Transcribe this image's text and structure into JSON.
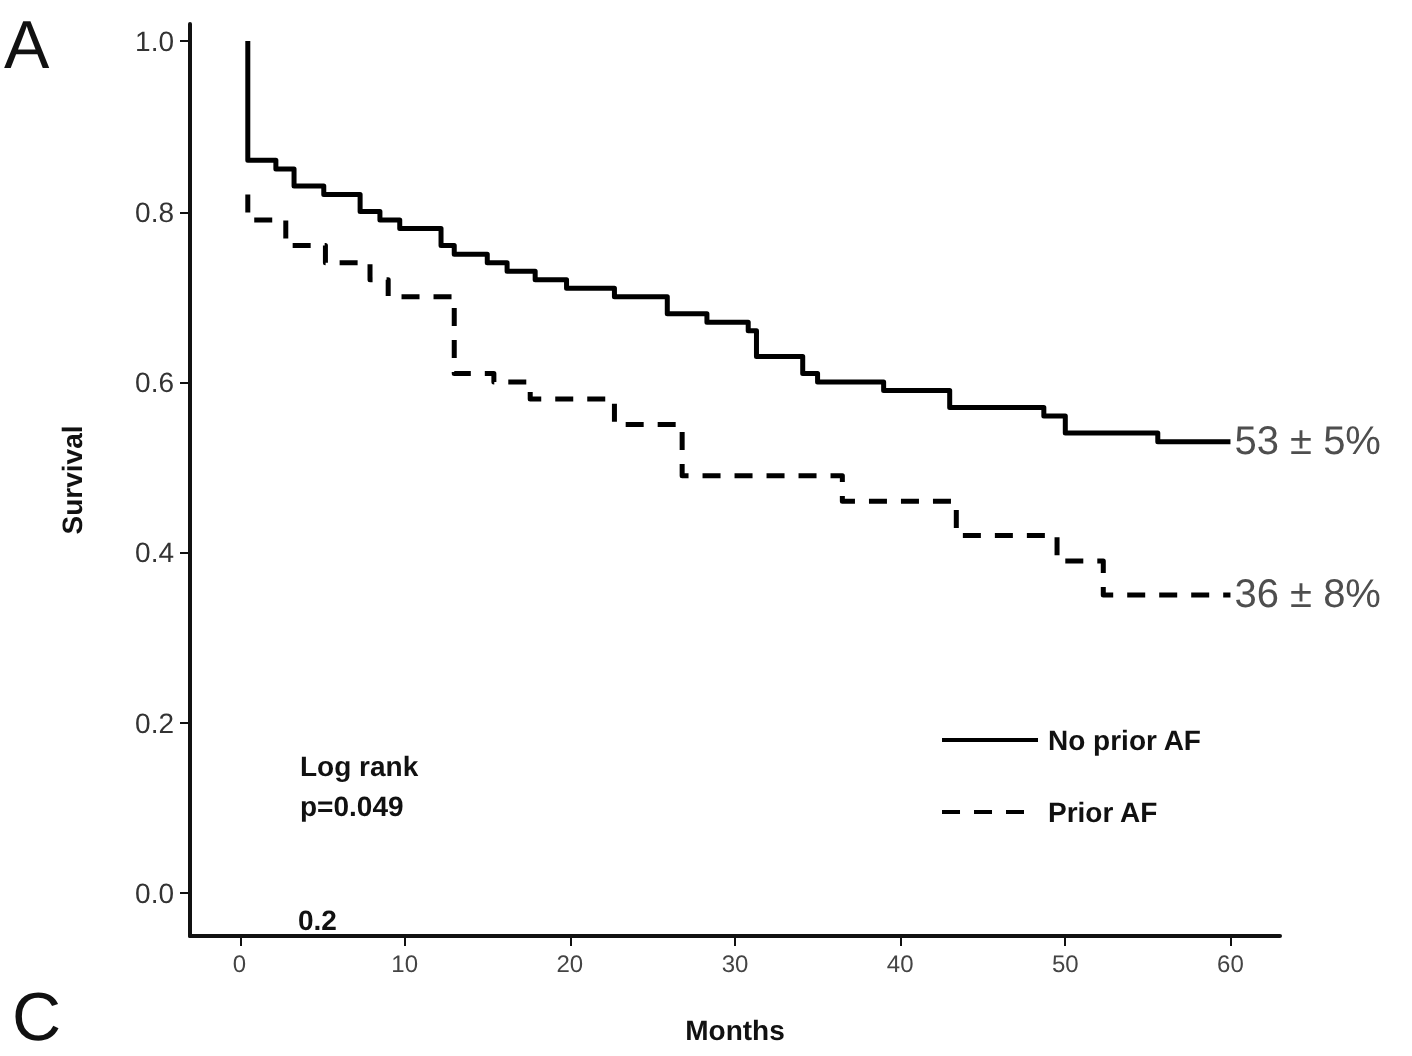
{
  "chart_data": {
    "type": "step",
    "xlabel": "Months",
    "ylabel": "Survival",
    "xlim": [
      -3,
      63
    ],
    "xticks": [
      0,
      10,
      20,
      30,
      40,
      50,
      60
    ],
    "ylim": [
      -0.05,
      1.02
    ],
    "yticks": [
      {
        "value": 0,
        "label": "0.0"
      },
      {
        "value": 0.2,
        "label": "0.2"
      },
      {
        "value": 0.4,
        "label": "0.4"
      },
      {
        "value": 0.6,
        "label": "0.6"
      },
      {
        "value": 0.8,
        "label": "0.8"
      },
      {
        "value": 1,
        "label": "1.0"
      }
    ],
    "grid": false,
    "legend": "bottom right",
    "marker": "none",
    "series": [
      {
        "name": "No prior AF",
        "color": "#000000",
        "line_style": "solid",
        "x": [
          0.5,
          0.5,
          2.2,
          3.3,
          5.1,
          7.3,
          8.5,
          9.7,
          12.2,
          13,
          15,
          16.2,
          17.9,
          19.8,
          22.7,
          25.9,
          28.3,
          30.8,
          31.3,
          34.1,
          35,
          39,
          43,
          48.7,
          50,
          55.6,
          60
        ],
        "values": [
          1.0,
          0.86,
          0.85,
          0.83,
          0.82,
          0.8,
          0.79,
          0.78,
          0.76,
          0.75,
          0.74,
          0.73,
          0.72,
          0.71,
          0.7,
          0.68,
          0.67,
          0.66,
          0.63,
          0.61,
          0.6,
          0.59,
          0.57,
          0.56,
          0.54,
          0.53,
          0.53
        ]
      },
      {
        "name": "Prior AF",
        "color": "#000000",
        "line_style": "dashed",
        "x": [
          0.5,
          0.5,
          2.8,
          5.2,
          7.9,
          9,
          13,
          15.4,
          17.6,
          22.7,
          26.8,
          36.5,
          43.4,
          49.5,
          52.3,
          60
        ],
        "values": [
          0.82,
          0.79,
          0.76,
          0.74,
          0.72,
          0.7,
          0.61,
          0.6,
          0.58,
          0.55,
          0.49,
          0.46,
          0.42,
          0.39,
          0.35,
          0.35
        ]
      }
    ],
    "annotations": [
      {
        "text": "53 ± 5%",
        "x": 60,
        "y": 0.53
      },
      {
        "text": "36 ± 8%",
        "x": 60,
        "y": 0.35
      },
      "Log rank\np=0.049",
      "A",
      "C",
      "0.2"
    ]
  }
}
